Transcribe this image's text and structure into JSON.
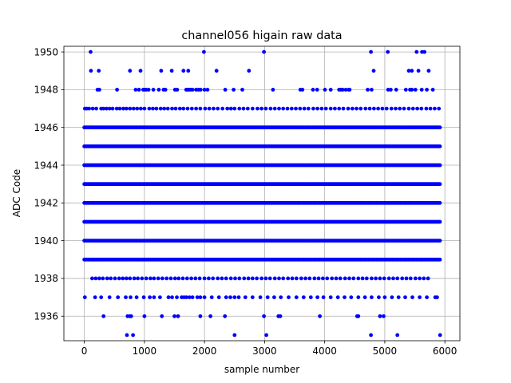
{
  "chart_data": {
    "type": "scatter",
    "title": "channel056 higain raw data",
    "xlabel": "sample number",
    "ylabel": "ADC Code",
    "xlim": [
      -340,
      6250
    ],
    "ylim": [
      1934.7,
      1950.3
    ],
    "x_ticks": [
      0,
      1000,
      2000,
      3000,
      4000,
      5000,
      6000
    ],
    "x_tick_labels": [
      "0",
      "1000",
      "2000",
      "3000",
      "4000",
      "5000",
      "6000"
    ],
    "y_ticks": [
      1936,
      1938,
      1940,
      1942,
      1944,
      1946,
      1948,
      1950
    ],
    "y_tick_labels": [
      "1936",
      "1938",
      "1940",
      "1942",
      "1944",
      "1946",
      "1948",
      "1950"
    ],
    "grid": true,
    "marker_color": "#0000ff",
    "series": [
      {
        "x_range": [
          0,
          5930
        ],
        "dense_levels": [
          1939,
          1940,
          1941,
          1942,
          1943,
          1944,
          1945,
          1946
        ],
        "dense_step": 22,
        "levels": [
          {
            "y": 1950,
            "x": [
              105,
              1990,
              2990,
              4770,
              5050,
              5530,
              5620,
              5660
            ]
          },
          {
            "y": 1949,
            "x": [
              110,
              240,
              760,
              935,
              1280,
              1455,
              1650,
              1730,
              2200,
              2740,
              4815,
              5400,
              5450,
              5560,
              5730
            ]
          },
          {
            "y": 1948,
            "x": [
              220,
              250,
              545,
              855,
              910,
              980,
              1000,
              1030,
              1070,
              1150,
              1240,
              1320,
              1350,
              1510,
              1545,
              1695,
              1715,
              1740,
              1770,
              1800,
              1860,
              1900,
              1935,
              2000,
              2050,
              2345,
              2485,
              2630,
              3140,
              3595,
              3630,
              3805,
              3875,
              4005,
              4100,
              4240,
              4270,
              4300,
              4350,
              4400,
              4415,
              4715,
              4780,
              5055,
              5100,
              5190,
              5350,
              5420,
              5450,
              5510,
              5615,
              5700,
              5800
            ]
          },
          {
            "y": 1947,
            "x": [
              10,
              40,
              80,
              140,
              200,
              280,
              320,
              370,
              420,
              470,
              540,
              590,
              650,
              700,
              760,
              820,
              880,
              940,
              1000,
              1080,
              1140,
              1200,
              1270,
              1330,
              1390,
              1460,
              1520,
              1590,
              1650,
              1720,
              1790,
              1860,
              1930,
              2010,
              2080,
              2150,
              2220,
              2300,
              2380,
              2440,
              2500,
              2580,
              2650,
              2720,
              2800,
              2880,
              2950,
              3020,
              3100,
              3170,
              3240,
              3310,
              3380,
              3450,
              3520,
              3590,
              3660,
              3730,
              3810,
              3880,
              3950,
              4020,
              4100,
              4170,
              4240,
              4310,
              4390,
              4460,
              4530,
              4600,
              4680,
              4750,
              4820,
              4890,
              4960,
              5030,
              5110,
              5180,
              5250,
              5320,
              5400,
              5470,
              5540,
              5610,
              5690,
              5760,
              5830,
              5900
            ]
          },
          {
            "y": 1938,
            "x": [
              130,
              190,
              250,
              310,
              380,
              440,
              510,
              580,
              640,
              700,
              760,
              830,
              890,
              960,
              1030,
              1100,
              1160,
              1230,
              1300,
              1370,
              1440,
              1510,
              1570,
              1640,
              1710,
              1780,
              1850,
              1920,
              2000,
              2070,
              2140,
              2220,
              2290,
              2360,
              2440,
              2510,
              2580,
              2660,
              2730,
              2800,
              2870,
              2950,
              3020,
              3090,
              3170,
              3240,
              3310,
              3390,
              3460,
              3530,
              3610,
              3680,
              3750,
              3830,
              3900,
              3970,
              4040,
              4120,
              4190,
              4260,
              4340,
              4410,
              4480,
              4560,
              4630,
              4700,
              4780,
              4850,
              4920,
              4990,
              5070,
              5140,
              5210,
              5290,
              5360,
              5430,
              5510,
              5580,
              5650,
              5720
            ]
          },
          {
            "y": 1937,
            "x": [
              10,
              180,
              280,
              420,
              560,
              690,
              770,
              870,
              990,
              1090,
              1160,
              1260,
              1400,
              1460,
              1540,
              1620,
              1660,
              1700,
              1750,
              1800,
              1880,
              1930,
              2000,
              2120,
              2240,
              2360,
              2430,
              2500,
              2570,
              2680,
              2800,
              2930,
              3050,
              3160,
              3270,
              3400,
              3530,
              3650,
              3770,
              3880,
              3980,
              4100,
              4220,
              4330,
              4440,
              4560,
              4670,
              4780,
              4900,
              5000,
              5120,
              5230,
              5340,
              5460,
              5580,
              5700,
              5840,
              5870
            ]
          },
          {
            "y": 1936,
            "x": [
              320,
              720,
              760,
              780,
              1000,
              1290,
              1500,
              1560,
              1930,
              2100,
              2340,
              2990,
              3230,
              3260,
              3920,
              4540,
              4560,
              4920,
              4980
            ]
          },
          {
            "y": 1935,
            "x": [
              710,
              810,
              2500,
              3030,
              4770,
              5210,
              5920
            ]
          }
        ]
      }
    ]
  }
}
